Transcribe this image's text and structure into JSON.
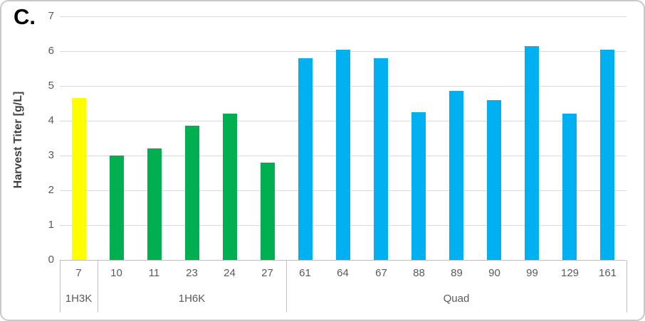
{
  "panel_label": "C.",
  "chart_data": {
    "type": "bar",
    "title": "",
    "xlabel": "",
    "ylabel": "Harvest Titer [g/L]",
    "ylim": [
      0,
      7
    ],
    "yticks": [
      0,
      1,
      2,
      3,
      4,
      5,
      6,
      7
    ],
    "grid": true,
    "legend": false,
    "groups": [
      {
        "label": "1H3K",
        "color": "#FFFF00",
        "categories": [
          "7"
        ],
        "values": [
          4.65
        ]
      },
      {
        "label": "1H6K",
        "color": "#00B050",
        "categories": [
          "10",
          "11",
          "23",
          "24",
          "27"
        ],
        "values": [
          3.0,
          3.2,
          3.85,
          4.2,
          2.8
        ]
      },
      {
        "label": "Quad",
        "color": "#00B0F0",
        "categories": [
          "61",
          "64",
          "67",
          "88",
          "89",
          "90",
          "99",
          "129",
          "161"
        ],
        "values": [
          5.8,
          6.05,
          5.8,
          4.25,
          4.85,
          4.6,
          6.15,
          4.2,
          6.05
        ]
      }
    ],
    "colors": {
      "gridline": "#D9D9D9",
      "axis_line": "#BFBFBF",
      "tick_text": "#595959",
      "category_text": "#595959",
      "group_text": "#595959",
      "ylabel_text": "#3F3F3F",
      "panel_label_text": "#000000",
      "background": "#FFFFFF",
      "border": "#C9C9C9"
    }
  }
}
